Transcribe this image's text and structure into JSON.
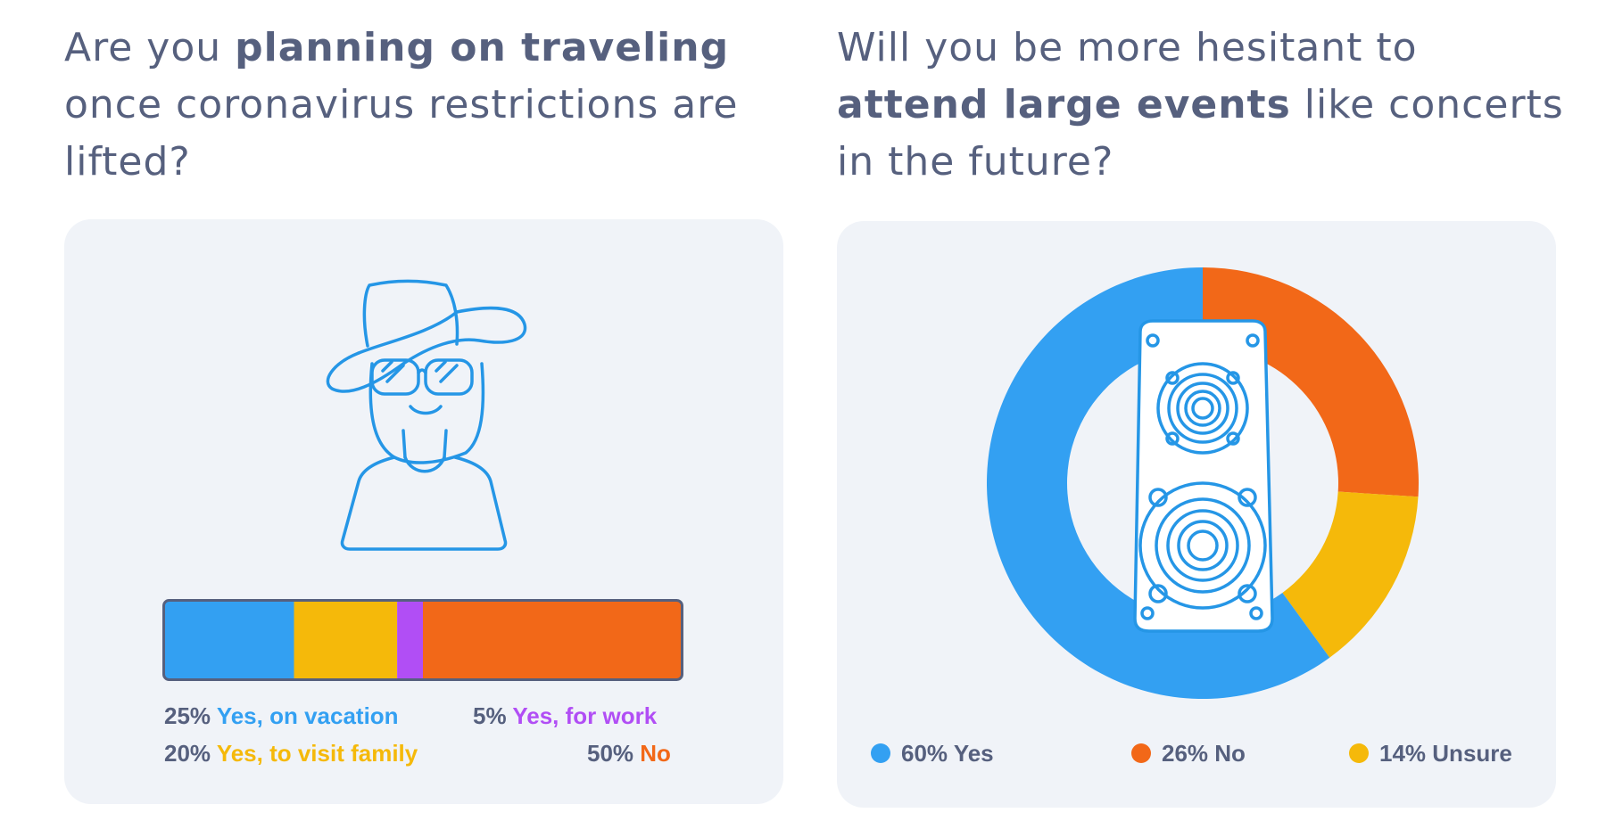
{
  "left": {
    "title_pre": "Are you ",
    "title_bold": "planning on traveling",
    "title_post": "once coronavirus restrictions are lifted?"
  },
  "right": {
    "title_pre": "Will you be more hesitant to ",
    "title_bold": "attend large events",
    "title_post": " like concerts in the future?"
  },
  "chart_data": [
    {
      "type": "bar",
      "stacked": true,
      "orientation": "horizontal",
      "series": [
        {
          "pct": "25%",
          "name": "Yes, on vacation",
          "value": 25,
          "color": "#33a0f2"
        },
        {
          "pct": "20%",
          "name": "Yes, to visit family",
          "value": 20,
          "color": "#f5b90a"
        },
        {
          "pct": "5%",
          "name": "Yes, for work",
          "value": 5,
          "color": "#b14ef5"
        },
        {
          "pct": "50%",
          "name": "No",
          "value": 50,
          "color": "#f26818"
        }
      ],
      "icon": "traveler-with-sunhat-icon"
    },
    {
      "type": "pie",
      "donut": true,
      "slices": [
        {
          "pct": "60%",
          "name": "Yes",
          "value": 60,
          "color": "#33a0f2"
        },
        {
          "pct": "26%",
          "name": "No",
          "value": 26,
          "color": "#f26818"
        },
        {
          "pct": "14%",
          "name": "Unsure",
          "value": 14,
          "color": "#f5b90a"
        }
      ],
      "start": "top",
      "direction": "clockwise",
      "icon": "speaker-icon"
    }
  ]
}
